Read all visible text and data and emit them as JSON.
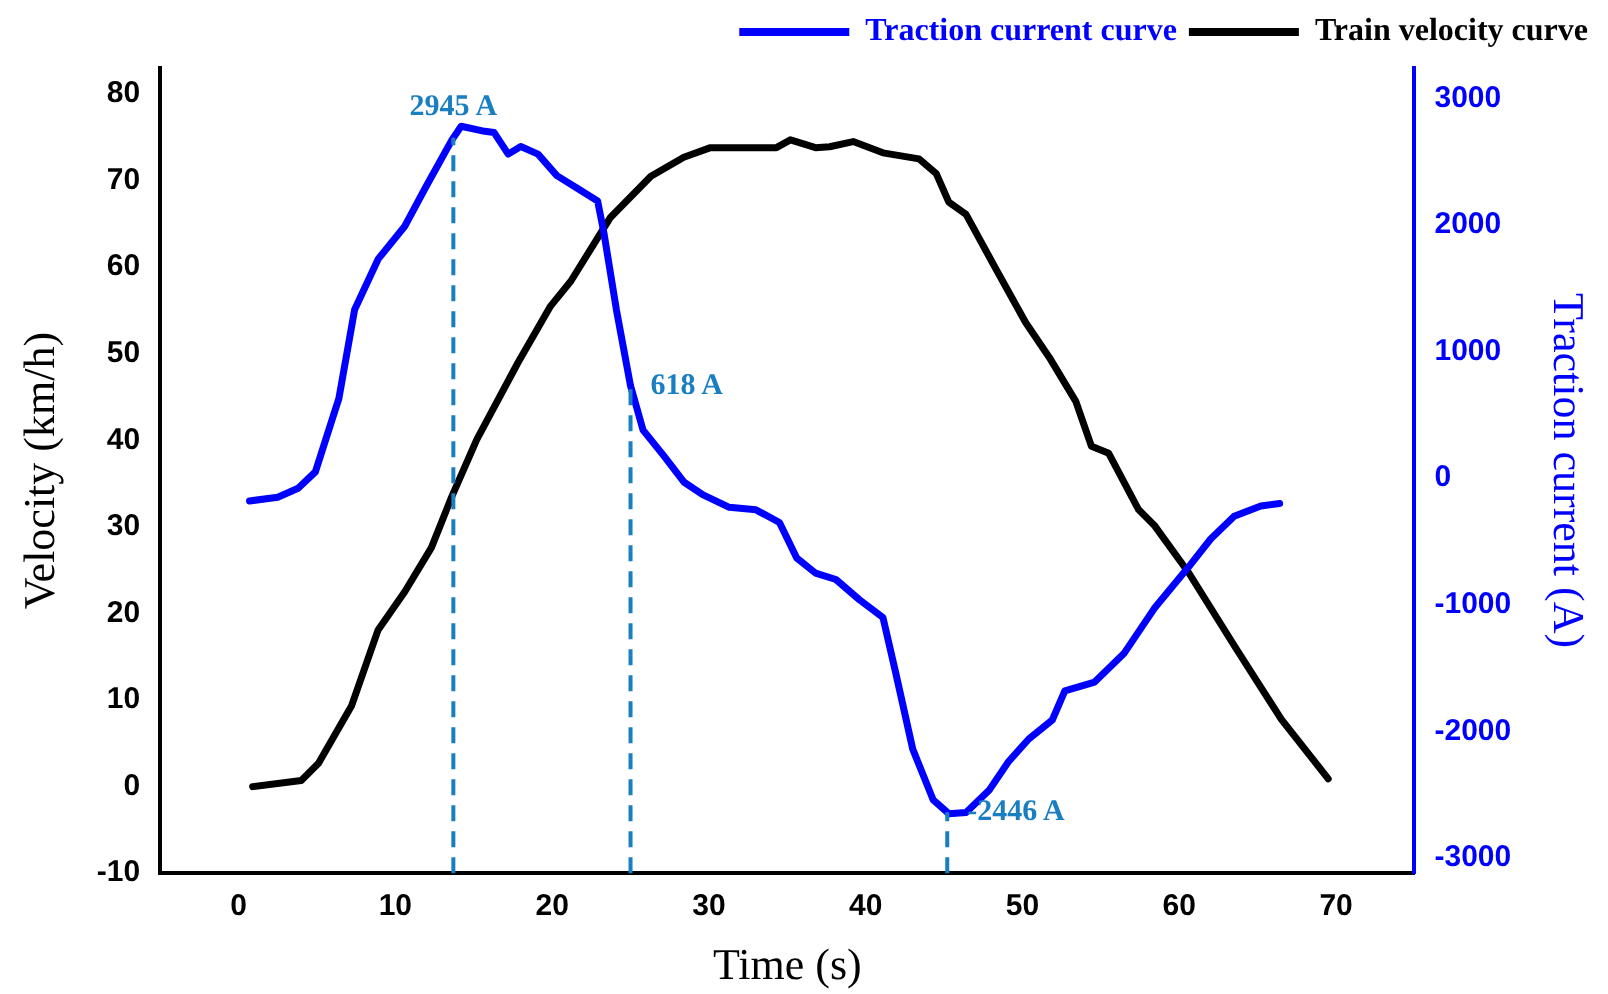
{
  "chart_data": {
    "type": "line",
    "xlabel": "Time (s)",
    "ylabel": "Velocity (km/h)",
    "y2label": "Traction current (A)",
    "xlim": [
      -5,
      75
    ],
    "xticks": [
      0,
      10,
      20,
      30,
      40,
      50,
      60,
      70
    ],
    "ylim": [
      -10,
      83
    ],
    "yticks": [
      -10,
      0,
      10,
      20,
      30,
      40,
      50,
      60,
      70,
      80
    ],
    "y2lim": [
      -3120,
      3240
    ],
    "y2ticks": [
      -3000,
      -2000,
      -1000,
      0,
      1000,
      2000,
      3000
    ],
    "grid": false,
    "legend": "top right",
    "marker": "none",
    "line_style": "solid",
    "series": [
      {
        "name": "Traction current curve",
        "color": "#0000ff",
        "axis": "y2",
        "x": [
          0.7,
          2.5,
          3.8,
          4.9,
          6.4,
          7.4,
          8.9,
          10.6,
          11.9,
          13.6,
          14.2,
          15.7,
          16.3,
          17.2,
          18.0,
          19.1,
          20.3,
          21.6,
          22.9,
          23.3,
          24.1,
          25.0,
          25.8,
          27.1,
          28.4,
          29.6,
          31.3,
          33.0,
          34.5,
          35.6,
          36.8,
          38.1,
          39.6,
          41.1,
          41.9,
          43.0,
          44.3,
          45.3,
          46.4,
          47.9,
          49.1,
          50.4,
          51.9,
          52.7,
          54.6,
          56.5,
          58.4,
          60.6,
          62.0,
          63.5,
          65.2,
          66.4
        ],
        "values": [
          -180,
          -150,
          -80,
          50,
          630,
          1330,
          1730,
          1990,
          2290,
          2670,
          2780,
          2740,
          2730,
          2560,
          2620,
          2560,
          2390,
          2290,
          2190,
          1940,
          1330,
          730,
          380,
          180,
          -30,
          -130,
          -230,
          -250,
          -350,
          -630,
          -750,
          -800,
          -960,
          -1100,
          -1530,
          -2140,
          -2540,
          -2650,
          -2640,
          -2460,
          -2240,
          -2060,
          -1910,
          -1680,
          -1610,
          -1380,
          -1030,
          -700,
          -480,
          -300,
          -220,
          -200
        ]
      },
      {
        "name": "Train velocity curve",
        "color": "#000000",
        "x": [
          0.9,
          4.0,
          5.1,
          7.2,
          8.9,
          10.6,
          12.3,
          13.6,
          15.2,
          17.8,
          19.9,
          21.2,
          23.7,
          26.3,
          28.4,
          30.1,
          34.3,
          35.2,
          36.8,
          37.7,
          39.2,
          41.1,
          43.4,
          44.5,
          45.3,
          46.4,
          48.3,
          50.2,
          51.7,
          53.4,
          54.4,
          55.5,
          57.4,
          58.4,
          60.6,
          63.5,
          66.5,
          69.5
        ],
        "values": [
          0,
          0.7,
          2.7,
          9.3,
          18.1,
          22.5,
          27.6,
          33.5,
          40.1,
          48.9,
          55.5,
          58.4,
          65.7,
          70.5,
          72.7,
          73.8,
          73.8,
          74.7,
          73.8,
          73.9,
          74.5,
          73.2,
          72.5,
          70.8,
          67.5,
          66.1,
          59.8,
          53.6,
          49.6,
          44.5,
          39.3,
          38.5,
          32.0,
          30.2,
          24.7,
          16.3,
          7.8,
          0.9
        ]
      }
    ],
    "ref_lines": [
      {
        "axis": "x",
        "value": 13.7,
        "label": "2945 A",
        "color": "#1a7fc1",
        "line_style": "dashed"
      },
      {
        "axis": "x",
        "value": 25.0,
        "label": "618 A",
        "color": "#1a7fc1",
        "line_style": "dashed"
      },
      {
        "axis": "x",
        "value": 45.2,
        "label": "-2446 A",
        "color": "#1a7fc1",
        "line_style": "dashed"
      }
    ]
  }
}
